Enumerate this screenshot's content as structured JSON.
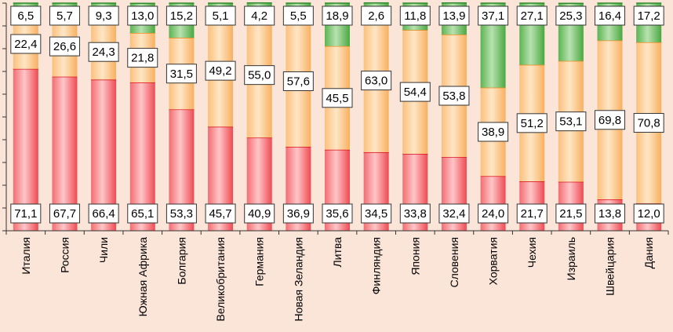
{
  "chart_data": {
    "type": "bar",
    "stacked": true,
    "orientation": "vertical",
    "ylim": [
      0,
      100
    ],
    "categories": [
      "Италия",
      "Россия",
      "Чили",
      "Южная Африка",
      "Болгария",
      "Великобритания",
      "Германия",
      "Новая Зеландия",
      "Литва",
      "Финляндия",
      "Япония",
      "Словения",
      "Хорватия",
      "Чехия",
      "Израиль",
      "Швейцария",
      "Дания"
    ],
    "series": [
      {
        "name": "series-1",
        "color": "#e8202a",
        "values": [
          71.1,
          67.7,
          66.4,
          65.1,
          53.3,
          45.7,
          40.9,
          36.9,
          35.6,
          34.5,
          33.8,
          32.4,
          24.0,
          21.7,
          21.5,
          13.8,
          12.0
        ]
      },
      {
        "name": "series-2",
        "color": "#f7a64a",
        "values": [
          22.4,
          26.6,
          24.3,
          21.8,
          31.5,
          49.2,
          55.0,
          57.6,
          45.5,
          63.0,
          54.4,
          53.8,
          38.9,
          51.2,
          53.1,
          69.8,
          70.8
        ]
      },
      {
        "name": "series-3",
        "color": "#3e9a34",
        "values": [
          6.5,
          5.7,
          9.3,
          13.0,
          15.2,
          5.1,
          4.2,
          5.5,
          18.9,
          2.6,
          11.8,
          13.9,
          37.1,
          27.1,
          25.3,
          16.4,
          17.2
        ]
      }
    ],
    "labels": {
      "bottom": [
        "71,1",
        "67,7",
        "66,4",
        "65,1",
        "53,3",
        "45,7",
        "40,9",
        "36,9",
        "35,6",
        "34,5",
        "33,8",
        "32,4",
        "24,0",
        "21,7",
        "21,5",
        "13,8",
        "12,0"
      ],
      "middle": [
        "22,4",
        "26,6",
        "24,3",
        "21,8",
        "31,5",
        "49,2",
        "55,0",
        "57,6",
        "45,5",
        "63,0",
        "54,4",
        "53,8",
        "38,9",
        "51,2",
        "53,1",
        "69,8",
        "70,8"
      ],
      "top": [
        "6,5",
        "5,7",
        "9,3",
        "13,0",
        "15,2",
        "5,1",
        "4,2",
        "5,5",
        "18,9",
        "2,6",
        "11,8",
        "13,9",
        "37,1",
        "27,1",
        "25,3",
        "16,4",
        "17,2"
      ]
    },
    "title": "",
    "xlabel": "",
    "ylabel": "",
    "grid": false,
    "legend": "none"
  }
}
